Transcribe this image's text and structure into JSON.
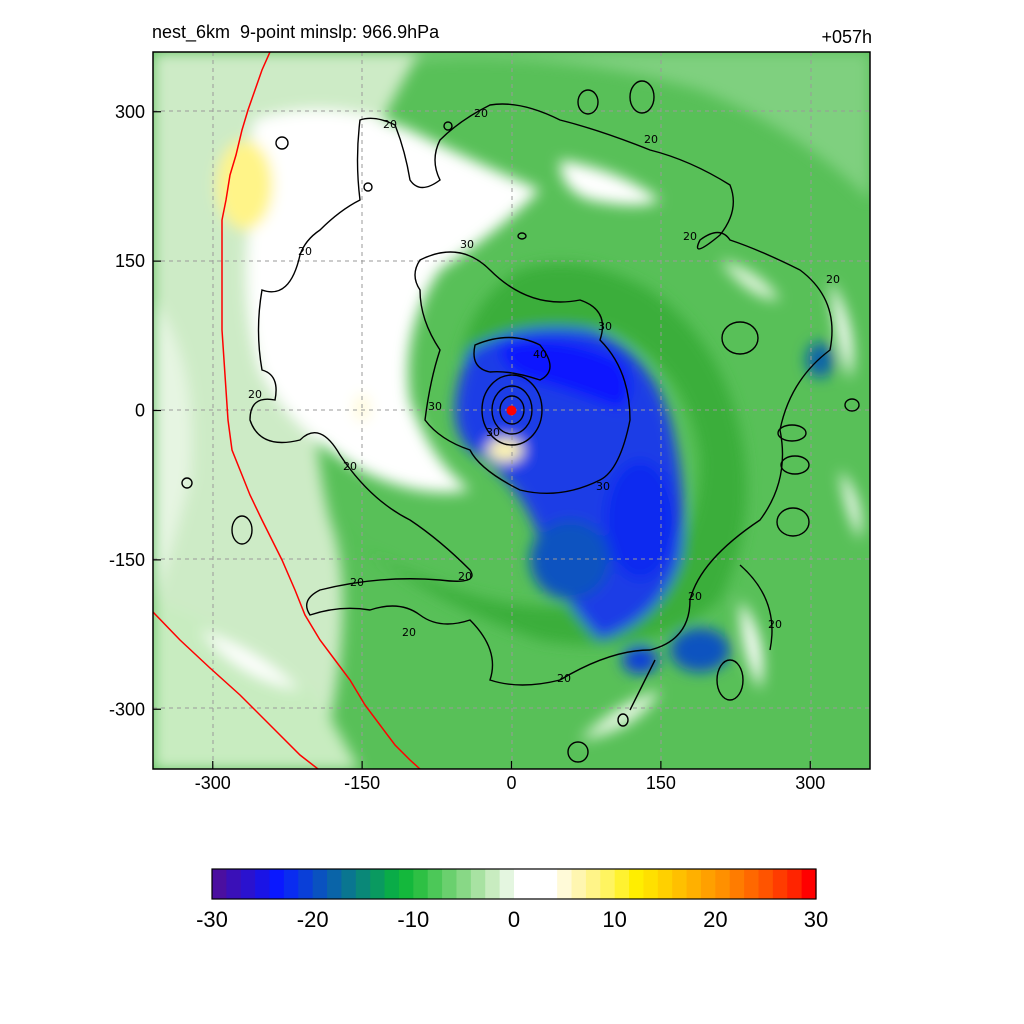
{
  "chart_data": {
    "type": "heatmap",
    "title_left": "nest_6km  9-point minslp: 966.9hPa",
    "title_right": "+057h",
    "xlabel": "",
    "ylabel": "",
    "xlim": [
      -360,
      360
    ],
    "ylim": [
      -360,
      360
    ],
    "x_ticks": [
      -300,
      -150,
      0,
      150,
      300
    ],
    "y_ticks": [
      -300,
      -150,
      0,
      150,
      300
    ],
    "grid": true,
    "colorbar": {
      "ticks": [
        -30,
        -20,
        -10,
        0,
        10,
        20,
        30
      ],
      "range": [
        -30,
        30
      ],
      "colors": [
        "#4b0fa0",
        "#3a10b8",
        "#2a12cf",
        "#1a14e6",
        "#0a18ff",
        "#0a2cf0",
        "#0a3fd8",
        "#0a52c0",
        "#0a64a8",
        "#0a7690",
        "#0a8878",
        "#0a9a60",
        "#0aac48",
        "#14b83c",
        "#2ec044",
        "#4cc858",
        "#6ad06e",
        "#88d886",
        "#a8e2a2",
        "#c8ecc0",
        "#e4f6e0",
        "#ffffff",
        "#ffffff",
        "#ffffff",
        "#fffad8",
        "#fff6b0",
        "#fff488",
        "#fff460",
        "#fff230",
        "#ffee00",
        "#ffe000",
        "#ffd000",
        "#ffc000",
        "#ffb000",
        "#ffa000",
        "#ff9000",
        "#ff7c00",
        "#ff6800",
        "#ff5400",
        "#ff3c00",
        "#ff2400",
        "#ff0000"
      ]
    },
    "contour_levels": [
      20,
      30,
      40
    ],
    "center_marker": {
      "x": 0,
      "y": 0,
      "color": "#ff0000"
    },
    "coastline_color": "#ff0000"
  }
}
